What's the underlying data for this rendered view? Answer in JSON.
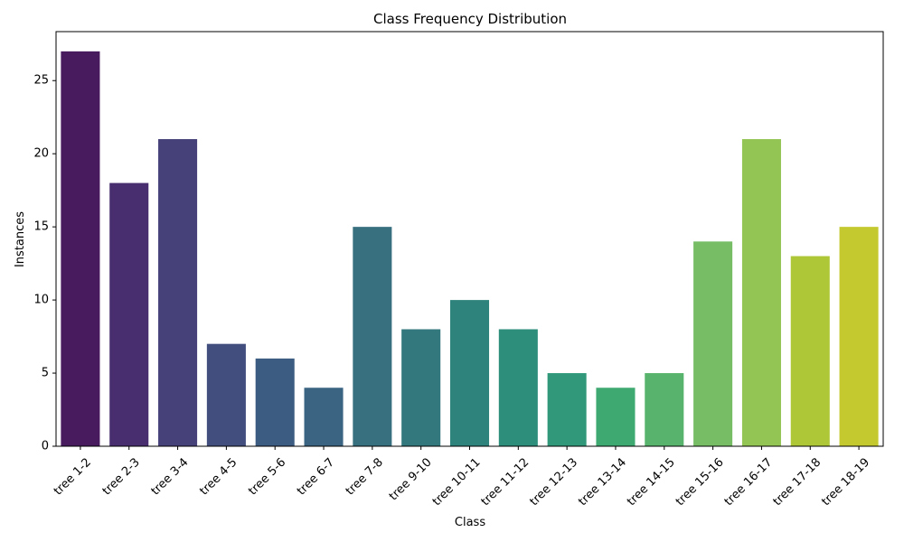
{
  "chart_data": {
    "type": "bar",
    "title": "Class Frequency Distribution",
    "xlabel": "Class",
    "ylabel": "Instances",
    "categories": [
      "tree 1-2",
      "tree 2-3",
      "tree 3-4",
      "tree 4-5",
      "tree 5-6",
      "tree 6-7",
      "tree 7-8",
      "tree 9-10",
      "tree 10-11",
      "tree 11-12",
      "tree 12-13",
      "tree 13-14",
      "tree 14-15",
      "tree 15-16",
      "tree 16-17",
      "tree 17-18",
      "tree 18-19"
    ],
    "values": [
      27,
      18,
      21,
      7,
      6,
      4,
      15,
      8,
      10,
      8,
      5,
      4,
      5,
      14,
      21,
      13,
      15
    ],
    "colors": [
      "#481b5e",
      "#482e6e",
      "#47417a",
      "#424e7e",
      "#3d5c81",
      "#3a6482",
      "#38707f",
      "#33787d",
      "#2e847c",
      "#2c8e7b",
      "#31997a",
      "#3eaa71",
      "#58b46c",
      "#76bd66",
      "#93c555",
      "#aec737",
      "#c3c92e"
    ],
    "yticks": [
      0,
      5,
      10,
      15,
      20,
      25
    ],
    "ylim": [
      0,
      28.35
    ],
    "grid": false,
    "legend": "none"
  }
}
